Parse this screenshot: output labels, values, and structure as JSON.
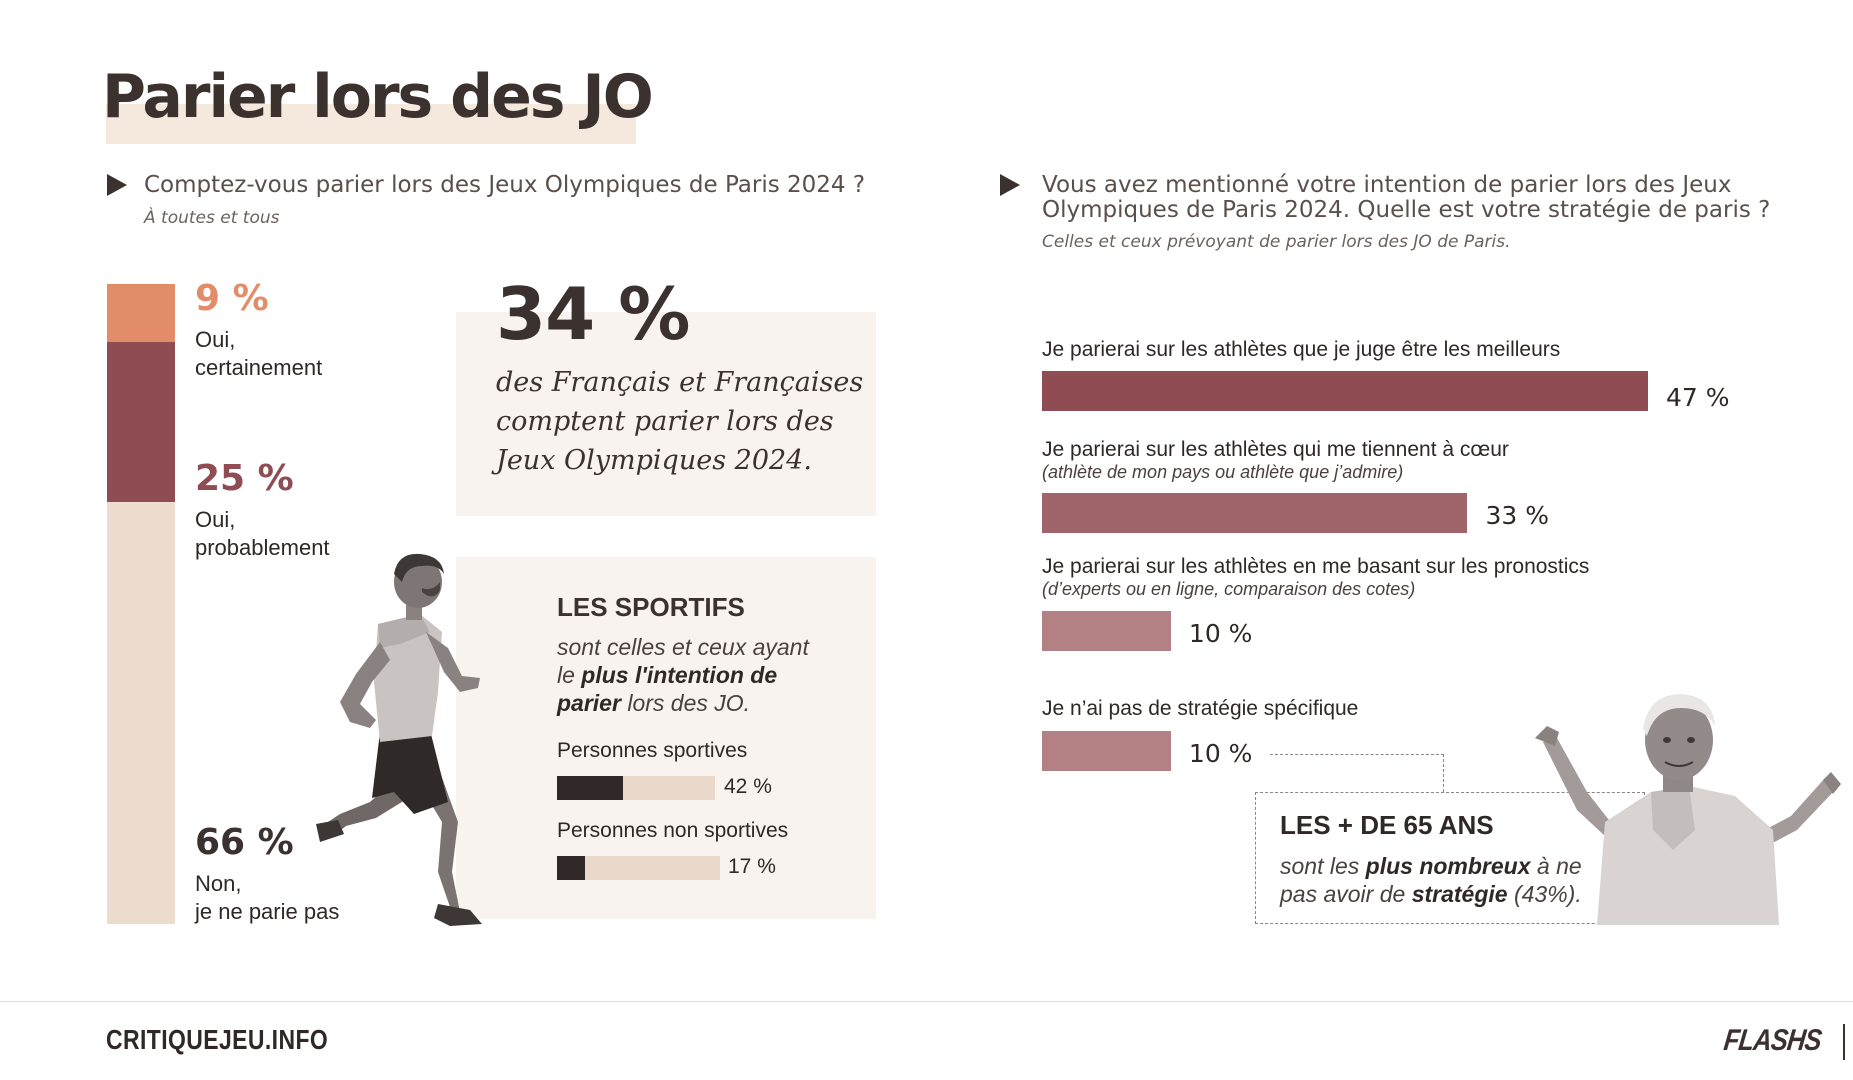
{
  "title": "Parier lors des JO",
  "left_question": {
    "question": "Comptez-vous parier lors des Jeux Olympiques de Paris 2024 ?",
    "audience": "À toutes et tous"
  },
  "right_question": {
    "question_line1": "Vous avez mentionné votre intention de parier lors des Jeux",
    "question_line2": "Olympiques de Paris 2024. Quelle est votre stratégie de paris ?",
    "audience": "Celles et ceux prévoyant de parier lors des JO de Paris."
  },
  "highlight": {
    "value": "34 %",
    "line1": "des Français et Françaises",
    "line2": "comptent parier lors des",
    "line3": "Jeux Olympiques 2024."
  },
  "sportifs": {
    "title": "LES SPORTIFS",
    "desc_a": "sont celles et ceux ayant",
    "desc_b": "le ",
    "desc_c": "plus l'intention de",
    "desc_d": "parier",
    "desc_e": " lors des JO.",
    "rows": [
      {
        "label": "Personnes sportives",
        "value": 42,
        "display": "42 %"
      },
      {
        "label": "Personnes non sportives",
        "value": 17,
        "display": "17 %"
      }
    ]
  },
  "seniors": {
    "title": "LES + DE 65 ANS",
    "text_a": "sont les ",
    "text_b": "plus nombreux",
    "text_c": "  à ne",
    "text_d": "pas avoir de ",
    "text_e": "stratégie",
    "text_f": " (43%)."
  },
  "footer": {
    "brand": "CRITIQUEJEU.INFO",
    "logo": "FLASHS"
  },
  "colors": {
    "dark": "#3b312e",
    "orange": "#e38c6a",
    "maroon": "#8f4c53",
    "beige": "#ecdccd",
    "bar1": "#8f4c53",
    "bar2": "#a0656a",
    "bar3": "#b38084",
    "bar4": "#b38084"
  },
  "chart_data": [
    {
      "type": "bar",
      "orientation": "stacked-vertical",
      "categories": [
        "Oui, certainement",
        "Oui, probablement",
        "Non, je ne parie pas"
      ],
      "values": [
        9,
        25,
        66
      ],
      "labels": [
        {
          "pct": "9 %",
          "line1": "Oui,",
          "line2": "certainement"
        },
        {
          "pct": "25 %",
          "line1": "Oui,",
          "line2": "probablement"
        },
        {
          "pct": "66 %",
          "line1": "Non,",
          "line2": "je ne parie pas"
        }
      ],
      "ylim": [
        0,
        100
      ]
    },
    {
      "type": "bar",
      "orientation": "horizontal",
      "categories": [
        "Je parierai sur les athlètes que je juge être les meilleurs",
        "Je parierai sur les athlètes qui me tiennent à cœur",
        "Je parierai sur les athlètes en me basant sur les pronostics",
        "Je n’ai pas de stratégie spécifique"
      ],
      "subtitles": [
        "",
        "(athlète de mon pays ou athlète que j’admire)",
        "(d’experts ou en ligne, comparaison des cotes)",
        ""
      ],
      "values": [
        47,
        33,
        10,
        10
      ],
      "value_labels": [
        "47 %",
        "33 %",
        "10 %",
        "10 %"
      ],
      "xlim": [
        0,
        47
      ]
    }
  ]
}
